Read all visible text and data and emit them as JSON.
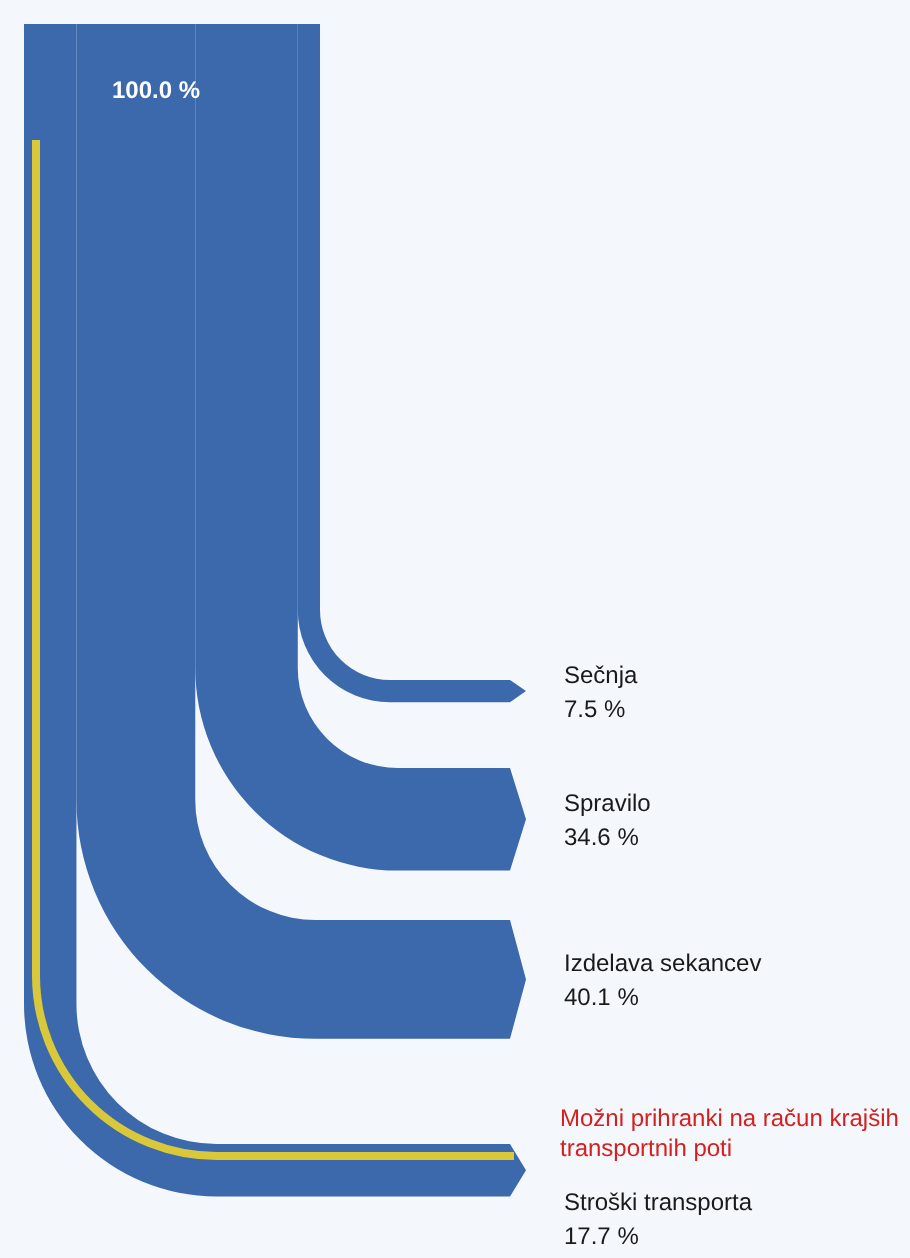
{
  "chart_data": {
    "type": "other",
    "categories": [
      "Sečnja",
      "Spravilo",
      "Izdelava sekancev",
      "Stroški transporta"
    ],
    "values": [
      7.5,
      34.6,
      40.1,
      17.7
    ],
    "value_labels": [
      "7.5 %",
      "34.6 %",
      "40.1 %",
      "17.7 %"
    ],
    "color": "#3b69ab",
    "annotations": [
      "100.0 %",
      "Možni prihranki na račun krajših transportnih poti"
    ]
  }
}
